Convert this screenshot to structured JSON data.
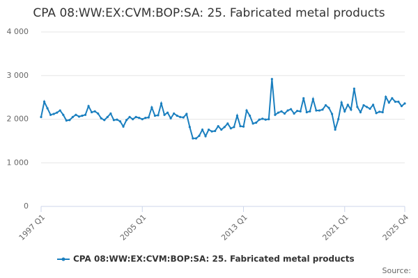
{
  "chart_data": {
    "type": "line",
    "title": "CPA 08:WW:EX:CVM:BOP:SA: 25. Fabricated metal products",
    "source": "Source:",
    "categories": [
      "1997 Q1",
      null,
      null,
      null,
      null,
      null,
      null,
      null,
      null,
      null,
      null,
      null,
      null,
      null,
      null,
      null,
      null,
      null,
      null,
      null,
      null,
      null,
      null,
      null,
      null,
      null,
      null,
      null,
      null,
      null,
      null,
      null,
      "2005 Q1",
      null,
      null,
      null,
      null,
      null,
      null,
      null,
      null,
      null,
      null,
      null,
      null,
      null,
      null,
      null,
      null,
      null,
      null,
      null,
      null,
      null,
      null,
      null,
      null,
      null,
      null,
      null,
      null,
      null,
      null,
      null,
      "2013 Q1",
      null,
      null,
      null,
      null,
      null,
      null,
      null,
      null,
      null,
      null,
      null,
      null,
      null,
      null,
      null,
      null,
      null,
      null,
      null,
      null,
      null,
      null,
      null,
      null,
      null,
      null,
      null,
      null,
      null,
      null,
      null,
      "2021 Q1",
      null,
      null,
      null,
      null,
      null,
      null,
      null,
      null,
      null,
      null,
      null,
      null,
      null,
      null,
      null,
      null,
      null,
      null,
      "2025 Q4"
    ],
    "series": [
      {
        "name": "CPA 08:WW:EX:CVM:BOP:SA: 25. Fabricated metal products",
        "color": "#1a7fbf",
        "values": [
          2050,
          2400,
          2250,
          2100,
          2120,
          2150,
          2200,
          2100,
          1970,
          1980,
          2050,
          2100,
          2060,
          2080,
          2100,
          2300,
          2160,
          2180,
          2130,
          2020,
          1980,
          2050,
          2130,
          1980,
          1990,
          1950,
          1830,
          1980,
          2050,
          2000,
          2050,
          2030,
          2000,
          2030,
          2040,
          2270,
          2080,
          2090,
          2360,
          2100,
          2150,
          2020,
          2130,
          2080,
          2050,
          2040,
          2120,
          1820,
          1560,
          1560,
          1620,
          1760,
          1610,
          1760,
          1720,
          1730,
          1840,
          1760,
          1820,
          1900,
          1790,
          1820,
          2080,
          1840,
          1830,
          2200,
          2080,
          1900,
          1920,
          1990,
          2010,
          1990,
          2000,
          2920,
          2100,
          2150,
          2180,
          2130,
          2200,
          2230,
          2130,
          2190,
          2180,
          2480,
          2160,
          2180,
          2460,
          2200,
          2200,
          2220,
          2320,
          2260,
          2120,
          1760,
          2000,
          2380,
          2180,
          2330,
          2220,
          2700,
          2280,
          2160,
          2320,
          2280,
          2240,
          2330,
          2140,
          2170,
          2160,
          2510,
          2380,
          2480,
          2400,
          2400,
          2300,
          2360
        ]
      }
    ],
    "ylim": [
      0,
      4000
    ],
    "yticks": [
      0,
      {
        "value": 1000,
        "label": "1 000"
      },
      {
        "value": 2000,
        "label": "2 000"
      },
      {
        "value": 3000,
        "label": "3 000"
      },
      {
        "value": 4000,
        "label": "4 000"
      }
    ],
    "grid": true
  }
}
